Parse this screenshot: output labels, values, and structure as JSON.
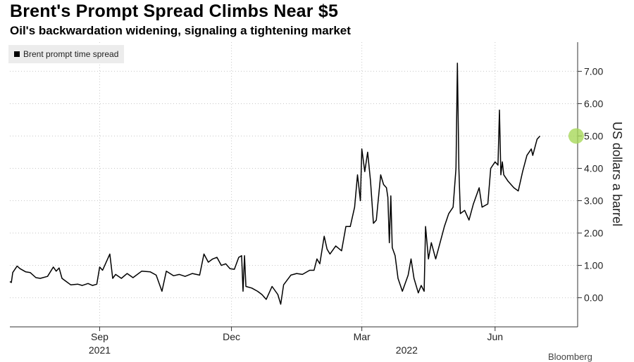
{
  "header": {
    "title": "Brent's Prompt Spread Climbs Near $5",
    "subtitle": "Oil's backwardation widening, signaling a tightening market"
  },
  "legend": {
    "label": "Brent prompt time spread",
    "swatch_color": "#000000"
  },
  "footer": {
    "credit": "Bloomberg"
  },
  "chart_data": {
    "type": "line",
    "title": "Brent's Prompt Spread Climbs Near $5",
    "subtitle": "Oil's backwardation widening, signaling a tightening market",
    "ylabel": "US dollars a barrel",
    "xlabel": "",
    "ylim": [
      -0.9,
      7.9
    ],
    "xlim": [
      "2021-07-01",
      "2022-07-28"
    ],
    "y_ticks": [
      0,
      1,
      2,
      3,
      4,
      5,
      6,
      7
    ],
    "y_tick_labels": [
      "0.00",
      "1.00",
      "2.00",
      "3.00",
      "4.00",
      "5.00",
      "6.00",
      "7.00"
    ],
    "x_ticks": [
      {
        "date": "2021-09-01",
        "label": "Sep"
      },
      {
        "date": "2021-12-01",
        "label": "Dec"
      },
      {
        "date": "2022-03-01",
        "label": "Mar"
      },
      {
        "date": "2022-06-01",
        "label": "Jun"
      }
    ],
    "x_year_labels": [
      {
        "date": "2021-09-01",
        "label": "2021"
      },
      {
        "date": "2022-04-01",
        "label": "2022"
      }
    ],
    "grid": true,
    "legend_position": "top-left",
    "line_color": "#000000",
    "highlight_marker": {
      "date": "2022-07-27",
      "value": 5.0,
      "color": "#a8d85a"
    },
    "series": [
      {
        "name": "Brent prompt time spread",
        "points": [
          [
            "2021-07-01",
            0.5
          ],
          [
            "2021-07-02",
            0.47
          ],
          [
            "2021-07-03",
            0.78
          ],
          [
            "2021-07-06",
            0.98
          ],
          [
            "2021-07-08",
            0.9
          ],
          [
            "2021-07-12",
            0.8
          ],
          [
            "2021-07-15",
            0.78
          ],
          [
            "2021-07-19",
            0.62
          ],
          [
            "2021-07-22",
            0.6
          ],
          [
            "2021-07-27",
            0.66
          ],
          [
            "2021-07-31",
            0.95
          ],
          [
            "2021-08-02",
            0.82
          ],
          [
            "2021-08-04",
            0.92
          ],
          [
            "2021-08-06",
            0.6
          ],
          [
            "2021-08-09",
            0.5
          ],
          [
            "2021-08-12",
            0.4
          ],
          [
            "2021-08-17",
            0.42
          ],
          [
            "2021-08-20",
            0.38
          ],
          [
            "2021-08-24",
            0.44
          ],
          [
            "2021-08-27",
            0.38
          ],
          [
            "2021-08-30",
            0.42
          ],
          [
            "2021-09-01",
            0.95
          ],
          [
            "2021-09-03",
            0.85
          ],
          [
            "2021-09-05",
            1.05
          ],
          [
            "2021-09-08",
            1.35
          ],
          [
            "2021-09-10",
            0.6
          ],
          [
            "2021-09-12",
            0.72
          ],
          [
            "2021-09-16",
            0.6
          ],
          [
            "2021-09-20",
            0.75
          ],
          [
            "2021-09-24",
            0.62
          ],
          [
            "2021-09-30",
            0.82
          ],
          [
            "2021-10-06",
            0.8
          ],
          [
            "2021-10-10",
            0.7
          ],
          [
            "2021-10-14",
            0.2
          ],
          [
            "2021-10-17",
            0.82
          ],
          [
            "2021-10-22",
            0.68
          ],
          [
            "2021-10-26",
            0.72
          ],
          [
            "2021-10-30",
            0.66
          ],
          [
            "2021-11-04",
            0.75
          ],
          [
            "2021-11-09",
            0.7
          ],
          [
            "2021-11-12",
            1.35
          ],
          [
            "2021-11-15",
            1.1
          ],
          [
            "2021-11-18",
            1.2
          ],
          [
            "2021-11-21",
            1.25
          ],
          [
            "2021-11-24",
            1.0
          ],
          [
            "2021-11-27",
            1.05
          ],
          [
            "2021-11-30",
            0.9
          ],
          [
            "2021-12-03",
            0.88
          ],
          [
            "2021-12-06",
            1.25
          ],
          [
            "2021-12-08",
            1.3
          ],
          [
            "2021-12-09",
            0.2
          ],
          [
            "2021-12-10",
            1.3
          ],
          [
            "2021-12-11",
            0.35
          ],
          [
            "2021-12-15",
            0.3
          ],
          [
            "2021-12-19",
            0.2
          ],
          [
            "2021-12-22",
            0.1
          ],
          [
            "2021-12-25",
            -0.05
          ],
          [
            "2021-12-29",
            0.35
          ],
          [
            "2022-01-02",
            0.1
          ],
          [
            "2022-01-04",
            -0.2
          ],
          [
            "2022-01-06",
            0.4
          ],
          [
            "2022-01-11",
            0.7
          ],
          [
            "2022-01-15",
            0.75
          ],
          [
            "2022-01-19",
            0.72
          ],
          [
            "2022-01-24",
            0.85
          ],
          [
            "2022-01-27",
            0.85
          ],
          [
            "2022-01-29",
            1.2
          ],
          [
            "2022-01-31",
            1.05
          ],
          [
            "2022-02-03",
            1.9
          ],
          [
            "2022-02-05",
            1.5
          ],
          [
            "2022-02-07",
            1.35
          ],
          [
            "2022-02-11",
            1.6
          ],
          [
            "2022-02-15",
            1.45
          ],
          [
            "2022-02-18",
            2.2
          ],
          [
            "2022-02-21",
            2.2
          ],
          [
            "2022-02-24",
            2.8
          ],
          [
            "2022-02-26",
            3.8
          ],
          [
            "2022-02-28",
            3.0
          ],
          [
            "2022-03-01",
            4.6
          ],
          [
            "2022-03-03",
            3.9
          ],
          [
            "2022-03-05",
            4.5
          ],
          [
            "2022-03-07",
            3.6
          ],
          [
            "2022-03-09",
            2.3
          ],
          [
            "2022-03-11",
            2.4
          ],
          [
            "2022-03-14",
            3.8
          ],
          [
            "2022-03-16",
            3.5
          ],
          [
            "2022-03-18",
            3.4
          ],
          [
            "2022-03-19",
            3.1
          ],
          [
            "2022-03-20",
            1.7
          ],
          [
            "2022-03-21",
            3.15
          ],
          [
            "2022-03-22",
            1.55
          ],
          [
            "2022-03-24",
            1.3
          ],
          [
            "2022-03-26",
            0.6
          ],
          [
            "2022-03-29",
            0.2
          ],
          [
            "2022-04-02",
            0.7
          ],
          [
            "2022-04-04",
            1.2
          ],
          [
            "2022-04-06",
            0.6
          ],
          [
            "2022-04-09",
            0.15
          ],
          [
            "2022-04-11",
            0.38
          ],
          [
            "2022-04-13",
            0.2
          ],
          [
            "2022-04-14",
            2.2
          ],
          [
            "2022-04-16",
            1.2
          ],
          [
            "2022-04-18",
            1.7
          ],
          [
            "2022-04-21",
            1.2
          ],
          [
            "2022-04-24",
            1.7
          ],
          [
            "2022-04-27",
            2.2
          ],
          [
            "2022-04-30",
            2.6
          ],
          [
            "2022-05-03",
            2.8
          ],
          [
            "2022-05-05",
            4.0
          ],
          [
            "2022-05-06",
            7.25
          ],
          [
            "2022-05-07",
            4.0
          ],
          [
            "2022-05-08",
            2.6
          ],
          [
            "2022-05-11",
            2.7
          ],
          [
            "2022-05-14",
            2.4
          ],
          [
            "2022-05-17",
            2.9
          ],
          [
            "2022-05-21",
            3.4
          ],
          [
            "2022-05-23",
            2.8
          ],
          [
            "2022-05-27",
            2.9
          ],
          [
            "2022-05-29",
            4.0
          ],
          [
            "2022-06-01",
            4.2
          ],
          [
            "2022-06-03",
            4.1
          ],
          [
            "2022-06-04",
            5.8
          ],
          [
            "2022-06-05",
            3.8
          ],
          [
            "2022-06-06",
            4.2
          ],
          [
            "2022-06-07",
            3.8
          ],
          [
            "2022-06-10",
            3.6
          ],
          [
            "2022-06-14",
            3.4
          ],
          [
            "2022-06-17",
            3.3
          ],
          [
            "2022-06-20",
            3.9
          ],
          [
            "2022-06-23",
            4.4
          ],
          [
            "2022-06-26",
            4.6
          ],
          [
            "2022-06-27",
            4.4
          ],
          [
            "2022-06-30",
            4.9
          ],
          [
            "2022-07-02",
            5.0
          ]
        ]
      }
    ]
  }
}
